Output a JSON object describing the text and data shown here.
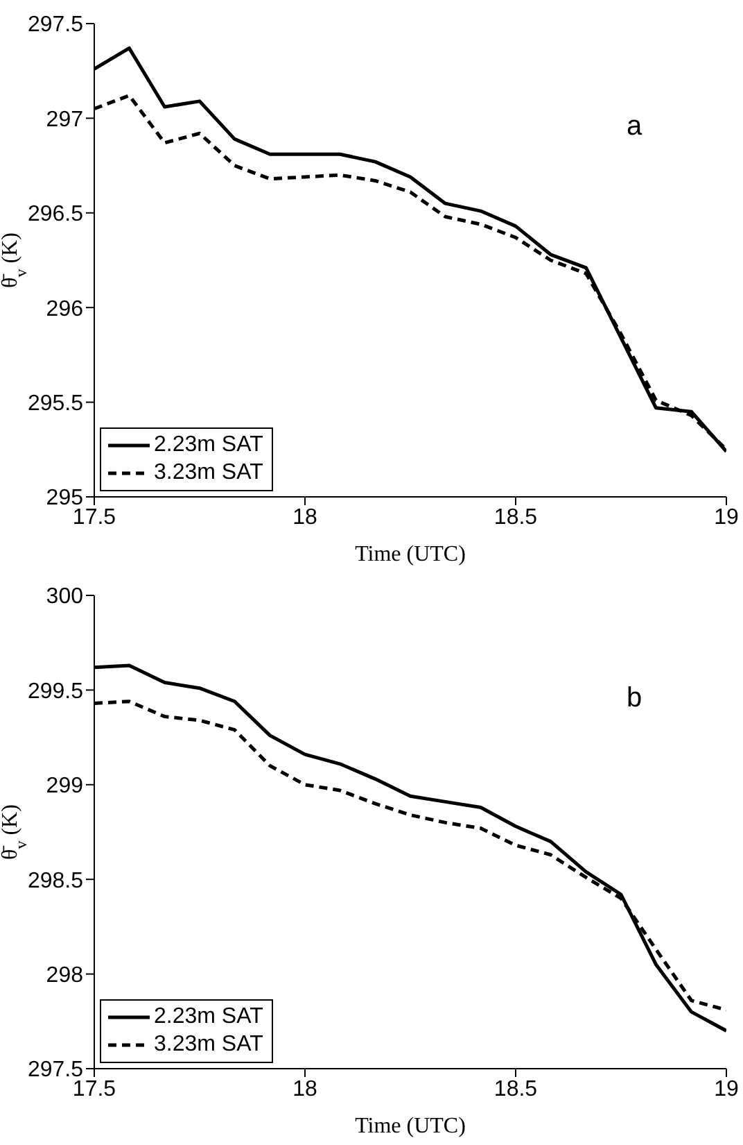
{
  "chart_data": [
    {
      "type": "line",
      "xlabel": "Time (UTC)",
      "ylabel": "θ̄$_{v}$ (K)",
      "annotations": [
        "a"
      ],
      "x": [
        17.5,
        17.583,
        17.667,
        17.75,
        17.833,
        17.917,
        18,
        18.083,
        18.167,
        18.25,
        18.333,
        18.417,
        18.5,
        18.583,
        18.667,
        18.75,
        18.833,
        18.917,
        19
      ],
      "series": [
        {
          "name": "2.23m SAT",
          "color": "#000000",
          "line_style": "solid",
          "values": [
            297.26,
            297.37,
            297.06,
            297.09,
            296.89,
            296.81,
            296.81,
            296.81,
            296.77,
            296.69,
            296.55,
            296.51,
            296.43,
            296.28,
            296.21,
            295.84,
            295.47,
            295.45,
            295.24
          ]
        },
        {
          "name": "3.23m SAT",
          "color": "#000000",
          "line_style": "dashed",
          "values": [
            297.05,
            297.12,
            296.87,
            296.92,
            296.75,
            296.68,
            296.69,
            296.7,
            296.67,
            296.61,
            296.48,
            296.44,
            296.37,
            296.25,
            296.18,
            295.86,
            295.51,
            295.43,
            295.25
          ]
        }
      ],
      "xlim": [
        17.5,
        19
      ],
      "xticks": [
        17.5,
        18,
        18.5,
        19
      ],
      "ylim": [
        295,
        297.5
      ],
      "yticks": [
        295,
        295.5,
        296,
        296.5,
        297,
        297.5
      ],
      "grid": false,
      "legend": "bottom left",
      "marker": "none"
    },
    {
      "type": "line",
      "xlabel": "Time (UTC)",
      "ylabel": "θ̄$_{v}$ (K)",
      "annotations": [
        "b"
      ],
      "x": [
        17.5,
        17.583,
        17.667,
        17.75,
        17.833,
        17.917,
        18,
        18.083,
        18.167,
        18.25,
        18.333,
        18.417,
        18.5,
        18.583,
        18.667,
        18.75,
        18.833,
        18.917,
        19
      ],
      "series": [
        {
          "name": "2.23m SAT",
          "color": "#000000",
          "line_style": "solid",
          "values": [
            299.62,
            299.63,
            299.54,
            299.51,
            299.44,
            299.26,
            299.16,
            299.11,
            299.03,
            298.94,
            298.91,
            298.88,
            298.78,
            298.7,
            298.54,
            298.42,
            298.05,
            297.8,
            297.7
          ]
        },
        {
          "name": "3.23m SAT",
          "color": "#000000",
          "line_style": "dashed",
          "values": [
            299.43,
            299.44,
            299.36,
            299.34,
            299.29,
            299.1,
            299,
            298.97,
            298.9,
            298.84,
            298.8,
            298.77,
            298.68,
            298.63,
            298.51,
            298.4,
            298.13,
            297.86,
            297.81
          ]
        }
      ],
      "xlim": [
        17.5,
        19
      ],
      "xticks": [
        17.5,
        18,
        18.5,
        19
      ],
      "ylim": [
        297.5,
        300
      ],
      "yticks": [
        297.5,
        298,
        298.5,
        299,
        299.5,
        300
      ],
      "grid": false,
      "legend": "bottom left",
      "marker": "none"
    }
  ]
}
